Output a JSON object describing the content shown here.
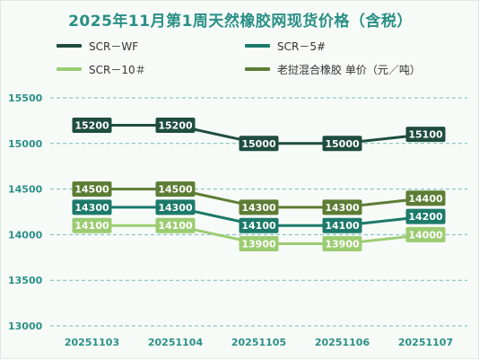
{
  "chart_data": {
    "type": "line",
    "title": "2025年11月第1周天然橡胶网现货价格（含税）",
    "categories": [
      "20251103",
      "20251104",
      "20251105",
      "20251106",
      "20251107"
    ],
    "ylim": [
      13000,
      15500
    ],
    "yticks": [
      13000,
      13500,
      14000,
      14500,
      15000,
      15500
    ],
    "grid": "dashed-horizontal",
    "legend_placement": "top",
    "series": [
      {
        "name": "SCR－WF",
        "color": "#1f4d3f",
        "values": [
          15200,
          15200,
          15000,
          15000,
          15100
        ]
      },
      {
        "name": "SCR－5#",
        "color": "#1c7a6a",
        "values": [
          14300,
          14300,
          14100,
          14100,
          14200
        ]
      },
      {
        "name": "SCR－10＃",
        "color": "#9ccc72",
        "values": [
          14100,
          14100,
          13900,
          13900,
          14000
        ]
      },
      {
        "name": "老挝混合橡胶 单价（元／吨）",
        "color": "#5d7d35",
        "values": [
          14500,
          14500,
          14300,
          14300,
          14400
        ]
      }
    ]
  }
}
